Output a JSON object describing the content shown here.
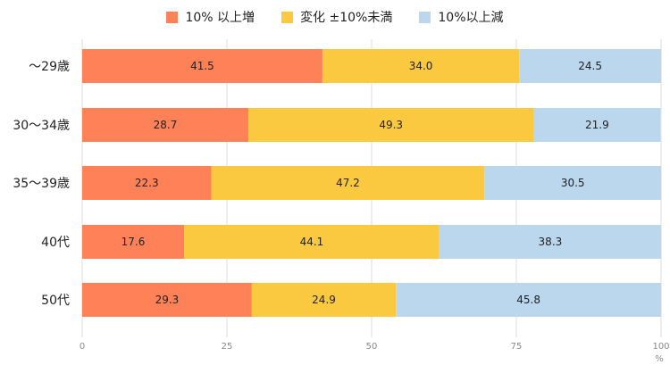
{
  "chart_data": {
    "type": "bar",
    "orientation": "horizontal",
    "stacked": true,
    "categories": [
      "〜29歳",
      "30〜34歳",
      "35〜39歳",
      "40代",
      "50代"
    ],
    "series": [
      {
        "name": "10% 以上増",
        "color": "#ff8157",
        "values": [
          41.5,
          28.7,
          22.3,
          17.6,
          29.3
        ]
      },
      {
        "name": "変化 ±10%未満",
        "color": "#fbc93f",
        "values": [
          34.0,
          49.3,
          47.2,
          44.1,
          24.9
        ]
      },
      {
        "name": "10%以上減",
        "color": "#bad7ed",
        "values": [
          24.5,
          21.9,
          30.5,
          38.3,
          45.8
        ]
      }
    ],
    "xlim": [
      0,
      100
    ],
    "xticks": [
      "0",
      "25",
      "50",
      "75",
      "100"
    ],
    "xunit": "%",
    "grid": true,
    "legend": "top-center",
    "data_labels": true
  }
}
